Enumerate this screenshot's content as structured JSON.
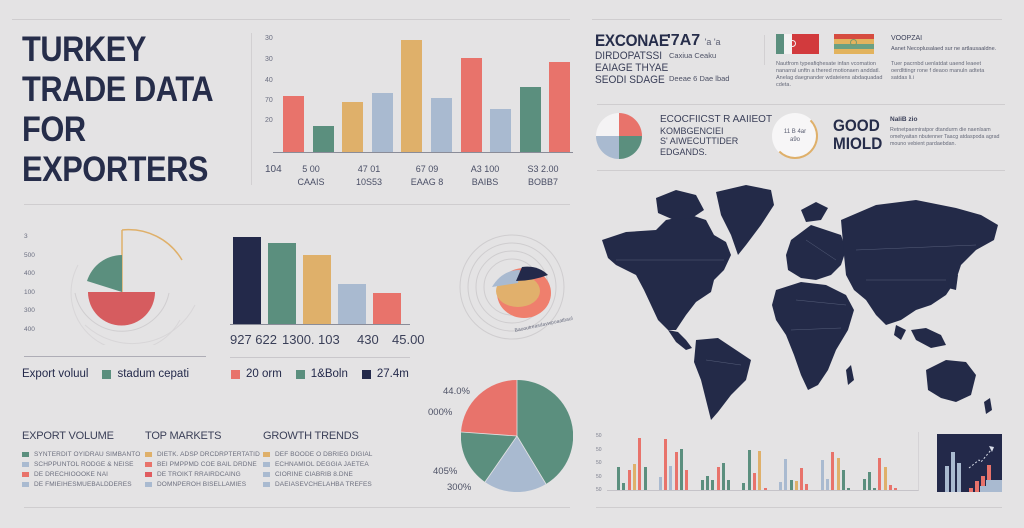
{
  "colors": {
    "background": "#e4e3e4",
    "navy": "#23294a",
    "coral": "#e8736b",
    "teal": "#5b8f7e",
    "gold": "#dfb06a",
    "lightblue": "#a9bad0",
    "red": "#d65c5f"
  },
  "header": {
    "title_lines": [
      "TURKEY",
      "TRADE DATA",
      "FOR",
      "EXPORTERS"
    ]
  },
  "top_right": {
    "block1": {
      "heading": "EXCONAE",
      "lines": [
        "DIRDOPATSSI",
        "EAIAGE THYAE",
        "SEODI SDAGE"
      ],
      "stat": "'7A7",
      "stat_suffix": "'a 'a",
      "note1": "Caxiua Ceaku",
      "note2": "Deeae 6 Dae lbad"
    },
    "flags": [
      "flag-italy-like",
      "flag-striped"
    ],
    "flag_caption": "Nautfrom  typeafiqhesate infan vcomation nanarral unftn a thered motionaen anddatl. Anelag daegnander wdateiens abdaquadad cdeta.",
    "block2": {
      "heading": "VOOPZAI",
      "subheading": "Aanet Necoplusalaed sur ne artlausaaldne.",
      "text": "Tuer pacrnbd uenlatdat uaend leaeet oerdlttingr rone f deaoo manuln adteta satdas li.i"
    },
    "block3": {
      "text_lines": [
        "ECOCFIICST R AAIIEOT",
        "KOMBGENCIEI",
        "S' AIWECUTTIDER",
        "EDGANDS."
      ],
      "ring_text_lines": [
        "11 B 4ar",
        "a9o"
      ],
      "big_text_lines": [
        "GOOD",
        "MIOLD"
      ],
      "side_heading": "NaliB zio",
      "side_text": "Retnetpaemiratpor dtandurm die naenlsam omehyaitan nbutenner Taacg atdaspoda agrad mouno vebient pardaebdan."
    }
  },
  "export_section": {
    "legend": [
      {
        "label": "Export voluul",
        "color": null
      },
      {
        "label": "stadum cepati",
        "color": "#5b8f7e"
      }
    ]
  },
  "market_section": {
    "legend": [
      {
        "label": "20 orm",
        "color": "#e8736b"
      },
      {
        "label": "1&Boln",
        "color": "#5b8f7e"
      },
      {
        "label": "27.4m",
        "color": "#23294a"
      }
    ]
  },
  "radial_caption": "Baooutreasdavwpoaatbaul",
  "pie_labels": [
    "44.0%",
    "000%",
    "405%",
    "300%"
  ],
  "keys": [
    {
      "heading": "EXPORT VOLUME",
      "rows": [
        {
          "label": "SYNTERDIT OYIDRAU SIMBANTO",
          "color": "#5b8f7e"
        },
        {
          "label": "SCHPPUNTOL RODGE & NEISE",
          "color": "#a9bad0"
        },
        {
          "label": "DE DRECHIOOOKE NAI",
          "color": "#e8736b"
        },
        {
          "label": "DE FMIEIHESMUEBALDDERES",
          "color": "#a9bad0"
        }
      ]
    },
    {
      "heading": "TOP MARKETS",
      "rows": [
        {
          "label": "DIETK. ADSP DRCDRPTERTATID",
          "color": "#dfb06a"
        },
        {
          "label": "BEI PMPPMD COE BAIL DRDNE",
          "color": "#e8736b"
        },
        {
          "label": "DE TROIKT RRAIRDCAING",
          "color": "#e05c60"
        },
        {
          "label": "DOMNPEROH BISELLAMIES",
          "color": "#a9bad0"
        }
      ]
    },
    {
      "heading": "GROWTH TRENDS",
      "rows": [
        {
          "label": "DEF BOODE O DBRIEG DIGIAL",
          "color": "#dfb06a"
        },
        {
          "label": "ECHNAMIOL DEGGIA JAETEA",
          "color": "#a9bad0"
        },
        {
          "label": "CIORINE CIABRIB 8.DNE",
          "color": "#a9bad0"
        },
        {
          "label": "DAEIASEVCHELAHBA TREFES",
          "color": "#a9bad0"
        }
      ]
    }
  ],
  "chart_data": [
    {
      "type": "bar",
      "title": "Top bar chart",
      "ylabel": "",
      "yticks": [
        "30",
        "30",
        "40",
        "70",
        "20"
      ],
      "categories": [
        "5 00 CAAIS",
        "47 01 10S53",
        "67 09 EAAG 8",
        "A3 100 BAIBS",
        "S3 2.00 BOBB7"
      ],
      "axis_label_left": "104",
      "values": [
        54,
        25,
        48,
        56,
        107,
        52,
        90,
        41,
        62,
        86
      ],
      "bar_colors": [
        "#e8736b",
        "#5b8f7e",
        "#dfb06a",
        "#a9bad0",
        "#dfb06a",
        "#a9bad0",
        "#e8736b",
        "#a9bad0",
        "#5b8f7e",
        "#e8736b"
      ],
      "ylim": [
        0,
        110
      ]
    },
    {
      "type": "bar",
      "title": "Market bar chart",
      "categories": [
        "927 622",
        "1300.",
        "103",
        "430",
        "45.00"
      ],
      "values": [
        87,
        81,
        69,
        40,
        31
      ],
      "bar_colors": [
        "#23294a",
        "#5b8f7e",
        "#dfb06a",
        "#a9bad0",
        "#e8736b"
      ],
      "legend": [
        "20 orm",
        "1&Boln",
        "27.4m"
      ]
    },
    {
      "type": "pie",
      "title": "Export volume half-donut",
      "yticks": [
        "3",
        "500",
        "400",
        "100",
        "300",
        "400"
      ],
      "slices": [
        {
          "label": "teal",
          "value": 20,
          "color": "#5b8f7e"
        },
        {
          "label": "red",
          "value": 50,
          "color": "#d65c5f"
        }
      ]
    },
    {
      "type": "pie",
      "title": "Share pie",
      "labels": [
        "44.0%",
        "000%",
        "405%",
        "300%"
      ],
      "slices": [
        {
          "label": "teal-large",
          "value": 40,
          "color": "#5b8f7e"
        },
        {
          "label": "lightblue",
          "value": 20,
          "color": "#a9bad0"
        },
        {
          "label": "teal-small",
          "value": 17,
          "color": "#5b8f7e"
        },
        {
          "label": "coral",
          "value": 23,
          "color": "#e8736b"
        }
      ]
    },
    {
      "type": "pie",
      "title": "Small quadrant pie",
      "slices": [
        {
          "value": 25,
          "color": "#e8736b"
        },
        {
          "value": 25,
          "color": "#5b8f7e"
        },
        {
          "value": 25,
          "color": "#a9bad0"
        },
        {
          "value": 25,
          "color": "#f4f3f4"
        }
      ]
    },
    {
      "type": "bar",
      "title": "Grouped mini bar chart",
      "yticks": [
        "50",
        "50",
        "50",
        "50",
        "50"
      ],
      "groups": [
        [
          {
            "v": 40,
            "c": "#5b8f7e"
          },
          {
            "v": 13,
            "c": "#5b8f7e"
          },
          {
            "v": 35,
            "c": "#e8736b"
          },
          {
            "v": 46,
            "c": "#dfb06a"
          },
          {
            "v": 92,
            "c": "#e8736b"
          },
          {
            "v": 40,
            "c": "#5b8f7e"
          }
        ],
        [
          {
            "v": 22,
            "c": "#a9bad0"
          },
          {
            "v": 90,
            "c": "#e8736b"
          },
          {
            "v": 42,
            "c": "#a9bad0"
          },
          {
            "v": 66,
            "c": "#e8736b"
          },
          {
            "v": 72,
            "c": "#5b8f7e"
          },
          {
            "v": 35,
            "c": "#e8736b"
          }
        ],
        [
          {
            "v": 17,
            "c": "#5b8f7e"
          },
          {
            "v": 25,
            "c": "#5b8f7e"
          },
          {
            "v": 18,
            "c": "#5b8f7e"
          },
          {
            "v": 40,
            "c": "#e8736b"
          },
          {
            "v": 47,
            "c": "#5b8f7e"
          },
          {
            "v": 18,
            "c": "#5b8f7e"
          }
        ],
        [
          {
            "v": 13,
            "c": "#5b8f7e"
          },
          {
            "v": 71,
            "c": "#5b8f7e"
          },
          {
            "v": 30,
            "c": "#e8736b"
          },
          {
            "v": 68,
            "c": "#dfb06a"
          },
          {
            "v": 3,
            "c": "#e8736b"
          }
        ],
        [
          {
            "v": 14,
            "c": "#a9bad0"
          },
          {
            "v": 55,
            "c": "#a9bad0"
          },
          {
            "v": 17,
            "c": "#5b8f7e"
          },
          {
            "v": 16,
            "c": "#dfb06a"
          },
          {
            "v": 39,
            "c": "#e8736b"
          },
          {
            "v": 11,
            "c": "#e8736b"
          }
        ],
        [
          {
            "v": 53,
            "c": "#a9bad0"
          },
          {
            "v": 19,
            "c": "#a9bad0"
          },
          {
            "v": 66,
            "c": "#e8736b"
          },
          {
            "v": 56,
            "c": "#dfb06a"
          },
          {
            "v": 35,
            "c": "#5b8f7e"
          },
          {
            "v": 3,
            "c": "#5b8f7e"
          }
        ],
        [
          {
            "v": 20,
            "c": "#5b8f7e"
          },
          {
            "v": 32,
            "c": "#5b8f7e"
          },
          {
            "v": 4,
            "c": "#5b8f7e"
          },
          {
            "v": 57,
            "c": "#e8736b"
          },
          {
            "v": 40,
            "c": "#dfb06a"
          },
          {
            "v": 9,
            "c": "#e8736b"
          },
          {
            "v": 4,
            "c": "#e8736b"
          }
        ]
      ]
    },
    {
      "type": "bar",
      "title": "Dark panel growth chart",
      "values": [
        57,
        88,
        64,
        10,
        25,
        35,
        60
      ],
      "bar_colors": [
        "#a9bad0",
        "#a9bad0",
        "#a9bad0",
        "#e8736b",
        "#e8736b",
        "#e8736b",
        "#e8736b"
      ]
    }
  ]
}
